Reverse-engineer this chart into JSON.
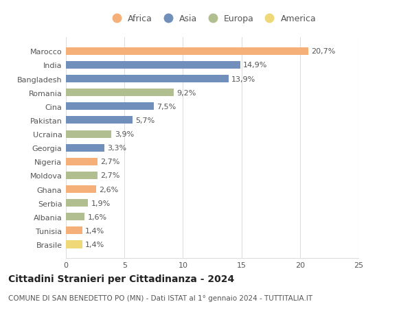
{
  "countries": [
    "Marocco",
    "India",
    "Bangladesh",
    "Romania",
    "Cina",
    "Pakistan",
    "Ucraina",
    "Georgia",
    "Nigeria",
    "Moldova",
    "Ghana",
    "Serbia",
    "Albania",
    "Tunisia",
    "Brasile"
  ],
  "values": [
    20.7,
    14.9,
    13.9,
    9.2,
    7.5,
    5.7,
    3.9,
    3.3,
    2.7,
    2.7,
    2.6,
    1.9,
    1.6,
    1.4,
    1.4
  ],
  "labels": [
    "20,7%",
    "14,9%",
    "13,9%",
    "9,2%",
    "7,5%",
    "5,7%",
    "3,9%",
    "3,3%",
    "2,7%",
    "2,7%",
    "2,6%",
    "1,9%",
    "1,6%",
    "1,4%",
    "1,4%"
  ],
  "continents": [
    "Africa",
    "Asia",
    "Asia",
    "Europa",
    "Asia",
    "Asia",
    "Europa",
    "Asia",
    "Africa",
    "Europa",
    "Africa",
    "Europa",
    "Europa",
    "Africa",
    "America"
  ],
  "continent_colors": {
    "Africa": "#F5B07A",
    "Asia": "#7090BB",
    "Europa": "#B0BE90",
    "America": "#EED878"
  },
  "legend_order": [
    "Africa",
    "Asia",
    "Europa",
    "America"
  ],
  "title": "Cittadini Stranieri per Cittadinanza - 2024",
  "subtitle": "COMUNE DI SAN BENEDETTO PO (MN) - Dati ISTAT al 1° gennaio 2024 - TUTTITALIA.IT",
  "xlim": [
    0,
    25
  ],
  "xticks": [
    0,
    5,
    10,
    15,
    20,
    25
  ],
  "bg_color": "#ffffff",
  "grid_color": "#dddddd",
  "bar_height": 0.55,
  "label_fontsize": 8,
  "title_fontsize": 10,
  "subtitle_fontsize": 7.5,
  "tick_fontsize": 8,
  "legend_fontsize": 9
}
